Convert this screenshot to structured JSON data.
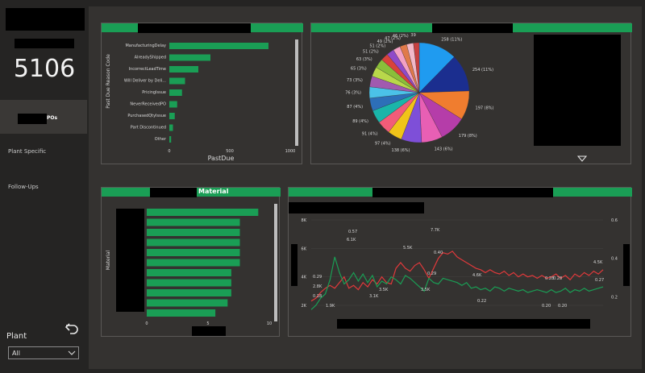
{
  "kpi": {
    "value": "5106"
  },
  "nav": {
    "active_suffix": "POs",
    "item2": "Plant Specific",
    "item3": "Follow-Ups"
  },
  "filter": {
    "label": "Plant",
    "value": "All"
  },
  "panel_material": {
    "title_suffix": "Material",
    "y_axis_label": "Material"
  },
  "colors": {
    "green": "#1a9e55",
    "red": "#e0393b",
    "dark_bg": "#343230",
    "page_bg": "#252423"
  },
  "icons": {
    "back": "undo-arrow-icon",
    "dropdown": "chevron-down-icon",
    "expand": "triangle-down-icon"
  },
  "chart_data": [
    {
      "type": "bar",
      "orientation": "horizontal",
      "categories": [
        "ManufacturingDelay",
        "AlreadyShipped",
        "IncorrectLeadTime",
        "Will Deliver by Deli...",
        "PricingIssue",
        "NeverReceivedPO",
        "PurchasedQtyIssue",
        "Part Discontinued",
        "Other"
      ],
      "values": [
        820,
        340,
        240,
        130,
        105,
        65,
        45,
        30,
        15
      ],
      "xlabel": "PastDue",
      "ylabel": "Past Due Reason Code",
      "xlim": [
        0,
        1000
      ],
      "xticks": [
        "0",
        "500",
        "1000"
      ]
    },
    {
      "type": "pie",
      "values": [
        258,
        254,
        197,
        179,
        143,
        138,
        97,
        91,
        89,
        87,
        76,
        73,
        65,
        63,
        51,
        51,
        49,
        47,
        46,
        39
      ],
      "labels": [
        "258 (11%)",
        "254 (11%)",
        "197 (8%)",
        "179 (8%)",
        "143 (6%)",
        "138 (6%)",
        "97 (4%)",
        "91 (4%)",
        "89 (4%)",
        "87 (4%)",
        "76 (3%)",
        "73 (3%)",
        "65 (3%)",
        "63 (3%)",
        "51 (2%)",
        "51 (2%)",
        "49 (2%)",
        "47 (2%)",
        "46 (2%)",
        "39"
      ],
      "colors": [
        "#1f9bf0",
        "#1b2e8f",
        "#f07d2f",
        "#b53da9",
        "#e85fb4",
        "#7e4fd8",
        "#f0c419",
        "#f25c79",
        "#1ab5a9",
        "#2d6fb8",
        "#4bc2e8",
        "#a15aaf",
        "#b8d84a",
        "#8abf3a",
        "#d9423b",
        "#8f4ac8",
        "#f3a0c4",
        "#e07a4a",
        "#f2b8c8",
        "#c74040"
      ]
    },
    {
      "type": "bar",
      "orientation": "horizontal",
      "values": [
        9.1,
        7.6,
        7.6,
        7.6,
        7.6,
        7.6,
        6.9,
        6.9,
        6.9,
        6.6,
        5.6
      ],
      "ylabel": "Material",
      "xlim": [
        0,
        10
      ],
      "xticks": [
        "0",
        "5",
        "10"
      ]
    },
    {
      "type": "line",
      "series": [
        {
          "color": "#e0393b",
          "values": [
            2.3,
            2.5,
            2.9,
            3.2,
            3.4,
            3.2,
            3.6,
            4.0,
            3.2,
            3.4,
            3.1,
            3.6,
            3.3,
            3.8,
            3.5,
            4.0,
            3.6,
            3.5,
            4.6,
            5.0,
            4.6,
            4.4,
            4.8,
            5.0,
            4.5,
            3.9,
            4.6,
            5.3,
            5.7,
            5.6,
            5.8,
            5.4,
            5.2,
            5.0,
            4.8,
            4.6,
            4.5,
            4.3,
            4.5,
            4.3,
            4.2,
            4.4,
            4.1,
            4.3,
            4.0,
            4.2,
            4.0,
            4.1,
            3.9,
            4.1,
            3.9,
            4.0,
            4.2,
            3.9,
            4.1,
            3.8,
            4.2,
            4.0,
            4.3,
            4.1,
            4.4,
            4.2,
            4.5
          ]
        },
        {
          "color": "#1a9e55",
          "values": [
            1.7,
            2.0,
            2.5,
            2.8,
            3.8,
            5.4,
            4.3,
            3.5,
            3.8,
            4.3,
            3.7,
            4.2,
            3.6,
            4.1,
            3.3,
            3.7,
            3.5,
            4.0,
            3.8,
            3.5,
            4.1,
            3.9,
            3.6,
            3.3,
            3.0,
            3.9,
            3.6,
            3.5,
            3.9,
            3.8,
            3.7,
            3.6,
            3.4,
            3.6,
            3.2,
            3.3,
            3.1,
            3.2,
            3.0,
            3.3,
            3.2,
            3.0,
            3.2,
            3.1,
            3.0,
            3.1,
            2.9,
            3.0,
            3.1,
            3.0,
            2.9,
            3.1,
            2.9,
            3.0,
            3.2,
            2.9,
            3.1,
            3.0,
            3.2,
            3.0,
            3.1,
            3.2,
            3.3
          ]
        }
      ],
      "y_left_ticks": [
        "2K",
        "4K",
        "6K",
        "8K"
      ],
      "y_left_range": [
        2000,
        8000
      ],
      "y_right_ticks": [
        "0.2",
        "0.4",
        "0.6"
      ],
      "annotations": [
        "0.29",
        "2.8K",
        "0.18",
        "1.9K",
        "0.57",
        "6.1K",
        "3.1K",
        "3.5K",
        "5.5K",
        "0.29",
        "3.5K",
        "7.7K",
        "0.40",
        "4.6K",
        "0.22",
        "0.20",
        "0.28",
        "0.28",
        "0.20",
        "4.5K",
        "0.27"
      ]
    }
  ]
}
